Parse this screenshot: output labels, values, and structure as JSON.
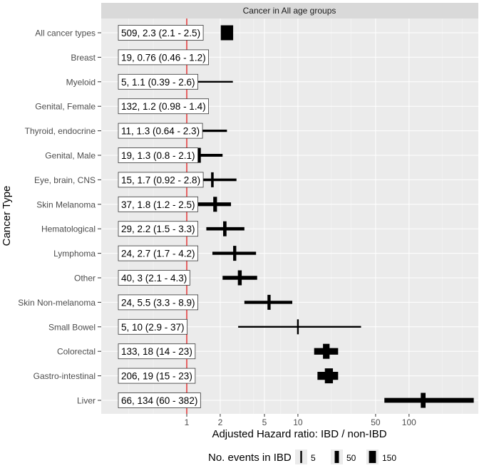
{
  "chart_data": {
    "type": "forest",
    "title": "Cancer in All age groups",
    "xlabel": "Adjusted Hazard ratio: IBD / non-IBD",
    "ylabel": "Cancer Type",
    "x_scale": "log",
    "xlim": [
      0.17,
      420
    ],
    "x_ticks": [
      1,
      2,
      5,
      10,
      50,
      100
    ],
    "reference_line": 1,
    "colors": {
      "panel": "#ebebeb",
      "strip": "#d9d9d9",
      "grid_major": "#ffffff",
      "grid_minor": "#f5f5f5",
      "reference": "#e41a1c",
      "marks": "#000000"
    },
    "rows": [
      {
        "label": "All cancer types",
        "events": 509,
        "hr": 2.3,
        "lo": 2.1,
        "hi": 2.5,
        "annotation": "509, 2.3 (2.1 - 2.5)"
      },
      {
        "label": "Breast",
        "events": 19,
        "hr": 0.76,
        "lo": 0.46,
        "hi": 1.2,
        "annotation": "19, 0.76 (0.46 - 1.2)"
      },
      {
        "label": "Myeloid",
        "events": 5,
        "hr": 1.1,
        "lo": 0.39,
        "hi": 2.6,
        "annotation": "5, 1.1 (0.39 - 2.6)"
      },
      {
        "label": "Genital, Female",
        "events": 132,
        "hr": 1.2,
        "lo": 0.98,
        "hi": 1.4,
        "annotation": "132, 1.2 (0.98 - 1.4)"
      },
      {
        "label": "Thyroid, endocrine",
        "events": 11,
        "hr": 1.3,
        "lo": 0.64,
        "hi": 2.3,
        "annotation": "11, 1.3 (0.64 - 2.3)"
      },
      {
        "label": "Genital, Male",
        "events": 19,
        "hr": 1.3,
        "lo": 0.8,
        "hi": 2.1,
        "annotation": "19, 1.3 (0.8 - 2.1)"
      },
      {
        "label": "Eye, brain, CNS",
        "events": 15,
        "hr": 1.7,
        "lo": 0.92,
        "hi": 2.8,
        "annotation": "15, 1.7 (0.92 - 2.8)"
      },
      {
        "label": "Skin Melanoma",
        "events": 37,
        "hr": 1.8,
        "lo": 1.2,
        "hi": 2.5,
        "annotation": "37, 1.8 (1.2 - 2.5)"
      },
      {
        "label": "Hematological",
        "events": 29,
        "hr": 2.2,
        "lo": 1.5,
        "hi": 3.3,
        "annotation": "29, 2.2 (1.5 - 3.3)"
      },
      {
        "label": "Lymphoma",
        "events": 24,
        "hr": 2.7,
        "lo": 1.7,
        "hi": 4.2,
        "annotation": "24, 2.7 (1.7 - 4.2)"
      },
      {
        "label": "Other",
        "events": 40,
        "hr": 3,
        "lo": 2.1,
        "hi": 4.3,
        "annotation": "40, 3 (2.1 - 4.3)"
      },
      {
        "label": "Skin Non-melanoma",
        "events": 24,
        "hr": 5.5,
        "lo": 3.3,
        "hi": 8.9,
        "annotation": "24, 5.5 (3.3 - 8.9)"
      },
      {
        "label": "Small Bowel",
        "events": 5,
        "hr": 10,
        "lo": 2.9,
        "hi": 37,
        "annotation": "5, 10 (2.9 - 37)"
      },
      {
        "label": "Colorectal",
        "events": 133,
        "hr": 18,
        "lo": 14,
        "hi": 23,
        "annotation": "133, 18 (14 - 23)"
      },
      {
        "label": "Gastro-intestinal",
        "events": 206,
        "hr": 19,
        "lo": 15,
        "hi": 23,
        "annotation": "206, 19 (15 - 23)"
      },
      {
        "label": "Liver",
        "events": 66,
        "hr": 134,
        "lo": 60,
        "hi": 382,
        "annotation": "66, 134 (60 - 382)"
      }
    ],
    "legend": {
      "title": "No. events in IBD",
      "placement": "bottom",
      "entries": [
        {
          "label": "5",
          "events": 5
        },
        {
          "label": "50",
          "events": 50
        },
        {
          "label": "150",
          "events": 150
        }
      ]
    }
  }
}
